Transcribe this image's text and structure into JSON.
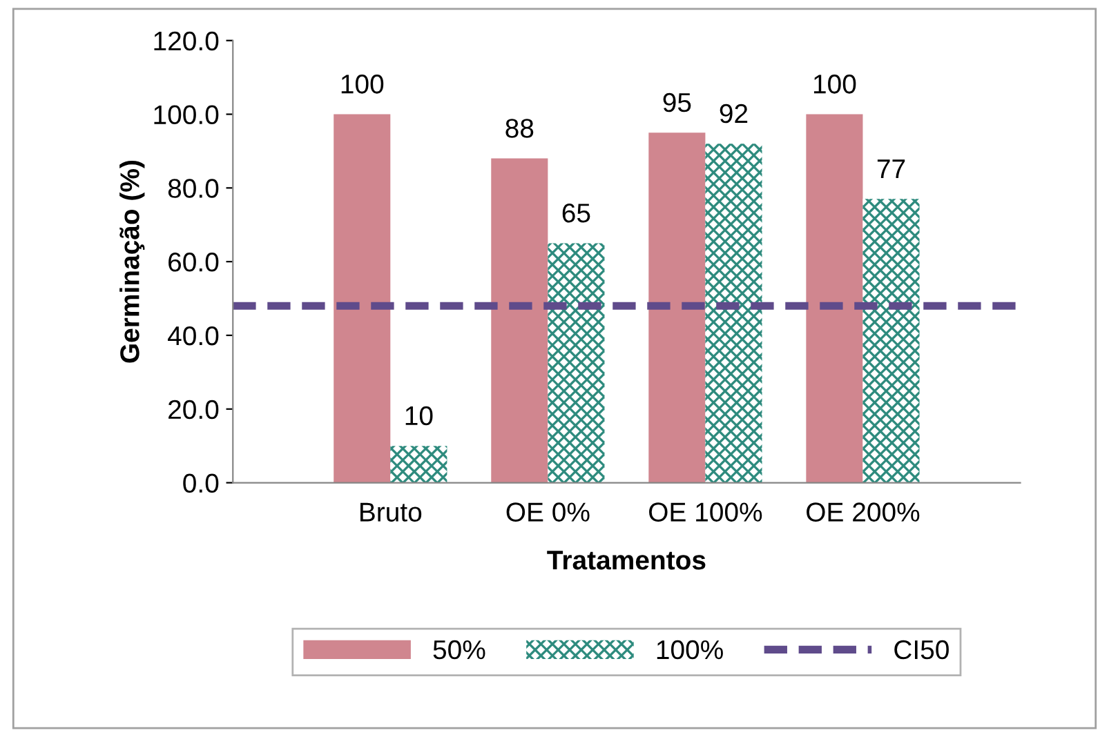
{
  "chart_data": {
    "type": "bar",
    "xlabel": "Tratamentos",
    "ylabel": "Germinação (%)",
    "categories": [
      null,
      "Bruto",
      "OE 0%",
      "OE 100%",
      "OE 200%",
      null
    ],
    "series": [
      {
        "name": "50%",
        "color": "#d0868f",
        "values": [
          null,
          100,
          88,
          95,
          100,
          null
        ]
      },
      {
        "name": "100%",
        "color": "#2e8b7e",
        "values": [
          null,
          10,
          65,
          92,
          77,
          null
        ]
      }
    ],
    "ref_lines": [
      {
        "axis": "y",
        "value": 48,
        "label": "CI50",
        "color": "#5f4b8b",
        "line_style": "dashed"
      }
    ],
    "ylim": [
      0,
      120
    ],
    "yticks": [
      {
        "value": 0,
        "label": "0.0"
      },
      {
        "value": 20,
        "label": "20.0"
      },
      {
        "value": 40,
        "label": "40.0"
      },
      {
        "value": 60,
        "label": "60.0"
      },
      {
        "value": 80,
        "label": "80.0"
      },
      {
        "value": 100,
        "label": "100.0"
      },
      {
        "value": 120,
        "label": "120.0"
      }
    ],
    "data_labels": true,
    "grid": false,
    "legend": "bottom"
  }
}
